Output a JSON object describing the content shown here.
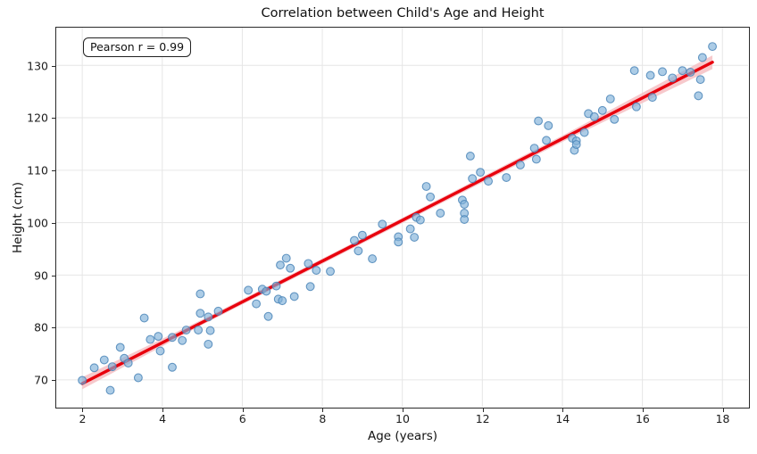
{
  "figure": {
    "title": "Correlation between Child's Age and Height",
    "annotation_text": "Pearson r = 0.99"
  },
  "chart_data": {
    "type": "scatter",
    "title": "Correlation between Child's Age and Height",
    "xlabel": "Age (years)",
    "ylabel": "Height (cm)",
    "xlim": [
      1.35,
      18.65
    ],
    "ylim": [
      64.8,
      137.2
    ],
    "xticks": [
      2,
      4,
      6,
      8,
      10,
      12,
      14,
      16,
      18
    ],
    "yticks": [
      70,
      80,
      90,
      100,
      110,
      120,
      130
    ],
    "grid": true,
    "legend_position": "none",
    "annotation": {
      "text": "Pearson r = 0.99",
      "x": 2.05,
      "y": 132.5
    },
    "marker": {
      "size": 8.8,
      "alpha": 0.65
    },
    "series": [
      {
        "name": "child-age-height-points",
        "type": "scatter",
        "points": [
          [
            2.0,
            69.9
          ],
          [
            2.3,
            72.3
          ],
          [
            2.55,
            73.8
          ],
          [
            2.7,
            68.0
          ],
          [
            2.75,
            72.5
          ],
          [
            2.95,
            76.2
          ],
          [
            3.05,
            74.1
          ],
          [
            3.15,
            73.2
          ],
          [
            3.4,
            70.4
          ],
          [
            3.55,
            81.8
          ],
          [
            3.7,
            77.7
          ],
          [
            3.9,
            78.3
          ],
          [
            3.95,
            75.5
          ],
          [
            4.25,
            78.1
          ],
          [
            4.25,
            72.4
          ],
          [
            4.5,
            77.5
          ],
          [
            4.6,
            79.5
          ],
          [
            4.9,
            79.5
          ],
          [
            4.95,
            86.4
          ],
          [
            4.95,
            82.7
          ],
          [
            5.15,
            82.0
          ],
          [
            5.15,
            76.8
          ],
          [
            5.2,
            79.4
          ],
          [
            5.4,
            83.1
          ],
          [
            6.15,
            87.1
          ],
          [
            6.35,
            84.5
          ],
          [
            6.5,
            87.3
          ],
          [
            6.6,
            86.9
          ],
          [
            6.65,
            82.1
          ],
          [
            6.85,
            87.9
          ],
          [
            6.9,
            85.4
          ],
          [
            6.95,
            91.9
          ],
          [
            7.0,
            85.1
          ],
          [
            7.1,
            93.2
          ],
          [
            7.2,
            91.3
          ],
          [
            7.3,
            85.9
          ],
          [
            7.65,
            92.2
          ],
          [
            7.7,
            87.8
          ],
          [
            7.85,
            90.9
          ],
          [
            8.2,
            90.7
          ],
          [
            8.8,
            96.6
          ],
          [
            8.9,
            94.6
          ],
          [
            9.0,
            97.6
          ],
          [
            9.25,
            93.1
          ],
          [
            9.5,
            99.7
          ],
          [
            9.9,
            97.3
          ],
          [
            9.9,
            96.3
          ],
          [
            10.2,
            98.8
          ],
          [
            10.3,
            97.2
          ],
          [
            10.35,
            101.0
          ],
          [
            10.45,
            100.5
          ],
          [
            10.6,
            106.9
          ],
          [
            10.7,
            104.9
          ],
          [
            10.95,
            101.8
          ],
          [
            11.5,
            104.3
          ],
          [
            11.55,
            103.5
          ],
          [
            11.55,
            101.8
          ],
          [
            11.55,
            100.6
          ],
          [
            11.7,
            112.7
          ],
          [
            11.75,
            108.4
          ],
          [
            11.95,
            109.6
          ],
          [
            12.15,
            107.9
          ],
          [
            12.6,
            108.6
          ],
          [
            12.95,
            111.0
          ],
          [
            13.3,
            114.2
          ],
          [
            13.35,
            112.1
          ],
          [
            13.4,
            119.4
          ],
          [
            13.6,
            115.7
          ],
          [
            13.65,
            118.5
          ],
          [
            14.25,
            116.1
          ],
          [
            14.3,
            113.8
          ],
          [
            14.35,
            115.6
          ],
          [
            14.35,
            114.9
          ],
          [
            14.55,
            117.2
          ],
          [
            14.65,
            120.8
          ],
          [
            14.8,
            120.2
          ],
          [
            15.0,
            121.4
          ],
          [
            15.2,
            123.6
          ],
          [
            15.3,
            119.7
          ],
          [
            15.8,
            129.0
          ],
          [
            15.85,
            122.1
          ],
          [
            16.2,
            128.1
          ],
          [
            16.25,
            123.9
          ],
          [
            16.5,
            128.8
          ],
          [
            16.75,
            127.6
          ],
          [
            17.0,
            129.0
          ],
          [
            17.2,
            128.7
          ],
          [
            17.4,
            124.2
          ],
          [
            17.45,
            127.3
          ],
          [
            17.5,
            131.5
          ],
          [
            17.75,
            133.6
          ]
        ]
      },
      {
        "name": "regression-line",
        "type": "line",
        "x": [
          2.0,
          17.75
        ],
        "y": [
          69.3,
          130.6
        ]
      }
    ],
    "confidence_band": [
      [
        2.0,
        68.2,
        70.5
      ],
      [
        5.0,
        80.5,
        81.5
      ],
      [
        10.0,
        99.9,
        100.9
      ],
      [
        14.0,
        115.4,
        116.6
      ],
      [
        17.75,
        129.3,
        131.9
      ]
    ],
    "colors": {
      "scatter_fill": "#7fb0d8",
      "scatter_edge": "#4c86b8",
      "line": "#e8000d",
      "band": "#f6bfc3",
      "grid": "#e6e6e6",
      "spine": "#2a2a2a",
      "text": "#1a1a1a"
    }
  }
}
